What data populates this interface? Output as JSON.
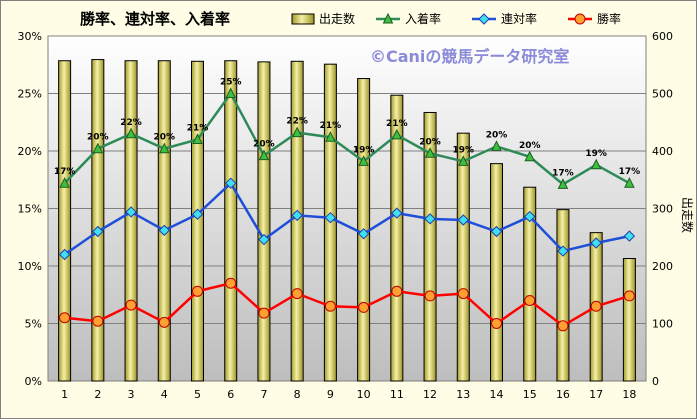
{
  "chart_data": {
    "type": "bar+line",
    "title": "勝率、連対率、入着率",
    "watermark": "©Caniの競馬データ研究室",
    "categories": [
      "1",
      "2",
      "3",
      "4",
      "5",
      "6",
      "7",
      "8",
      "9",
      "10",
      "11",
      "12",
      "13",
      "14",
      "15",
      "16",
      "17",
      "18"
    ],
    "bar_series": {
      "name": "出走数",
      "axis": "right",
      "values": [
        557,
        559,
        557,
        557,
        556,
        557,
        555,
        556,
        551,
        526,
        497,
        467,
        431,
        378,
        337,
        298,
        258,
        213
      ]
    },
    "line_series": [
      {
        "name": "入着率",
        "color": "#2e8b57",
        "marker": "triangle",
        "values": [
          17.2,
          20.2,
          21.5,
          20.2,
          21.0,
          25.0,
          19.6,
          21.6,
          21.2,
          19.1,
          21.4,
          19.8,
          19.1,
          20.4,
          19.5,
          17.1,
          18.8,
          17.2
        ],
        "labels": [
          "17%",
          "20%",
          "22%",
          "20%",
          "21%",
          "25%",
          "20%",
          "22%",
          "21%",
          "19%",
          "21%",
          "20%",
          "19%",
          "20%",
          "20%",
          "17%",
          "19%",
          "17%"
        ]
      },
      {
        "name": "連対率",
        "color": "#1f4fd8",
        "marker": "diamond",
        "values": [
          11.0,
          13.0,
          14.7,
          13.1,
          14.5,
          17.2,
          12.3,
          14.4,
          14.2,
          12.8,
          14.6,
          14.1,
          14.0,
          13.0,
          14.3,
          11.3,
          12.0,
          12.6
        ]
      },
      {
        "name": "勝率",
        "color": "#ff0000",
        "marker": "circle",
        "values": [
          5.5,
          5.2,
          6.6,
          5.1,
          7.8,
          8.5,
          5.9,
          7.6,
          6.5,
          6.4,
          7.8,
          7.4,
          7.6,
          5.0,
          7.0,
          4.8,
          6.5,
          7.4
        ]
      }
    ],
    "y_left": {
      "min": 0,
      "max": 30,
      "step": 5,
      "tick_labels": [
        "0%",
        "5%",
        "10%",
        "15%",
        "20%",
        "25%",
        "30%"
      ]
    },
    "y_right": {
      "min": 0,
      "max": 600,
      "step": 100,
      "label": "出走数",
      "tick_labels": [
        "0",
        "100",
        "200",
        "300",
        "400",
        "500",
        "600"
      ]
    },
    "grid": true,
    "legend_position": "top",
    "colors": {
      "bar_fill": "#e8e27a",
      "bar_stroke": "#000000",
      "plot_bg_top": "#ffffff",
      "plot_bg_bottom": "#bdbdbd"
    }
  }
}
